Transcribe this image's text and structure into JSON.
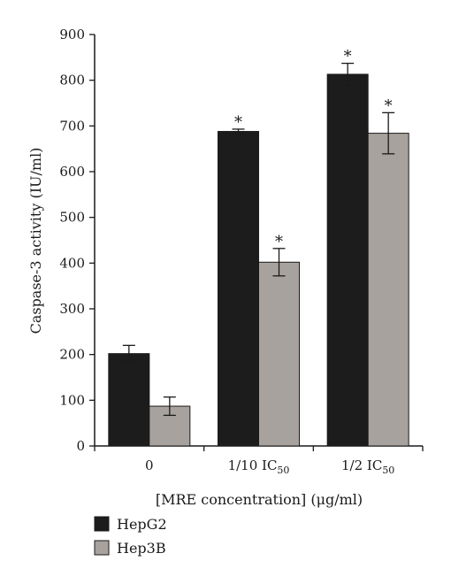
{
  "chart_data": {
    "type": "bar",
    "title": "",
    "xlabel": "[MRE concentration] (μg/ml)",
    "ylabel": "Caspase-3 activity (IU/ml)",
    "ylim": [
      0,
      900
    ],
    "yticks": [
      0,
      100,
      200,
      300,
      400,
      500,
      600,
      700,
      800,
      900
    ],
    "categories": [
      {
        "base": "0",
        "sub": ""
      },
      {
        "base": "1/10 IC",
        "sub": "50"
      },
      {
        "base": "1/2 IC",
        "sub": "50"
      }
    ],
    "series": [
      {
        "name": "HepG2",
        "color": "#1c1c1c",
        "values": [
          202,
          688,
          813
        ],
        "errors": [
          18,
          5,
          24
        ],
        "significant": [
          false,
          true,
          true
        ]
      },
      {
        "name": "Hep3B",
        "color": "#a8a29e",
        "values": [
          87,
          402,
          684
        ],
        "errors": [
          20,
          30,
          45
        ],
        "significant": [
          false,
          true,
          true
        ]
      }
    ],
    "significance_marker": "*",
    "legend_position": "bottom-left",
    "grid": false
  }
}
